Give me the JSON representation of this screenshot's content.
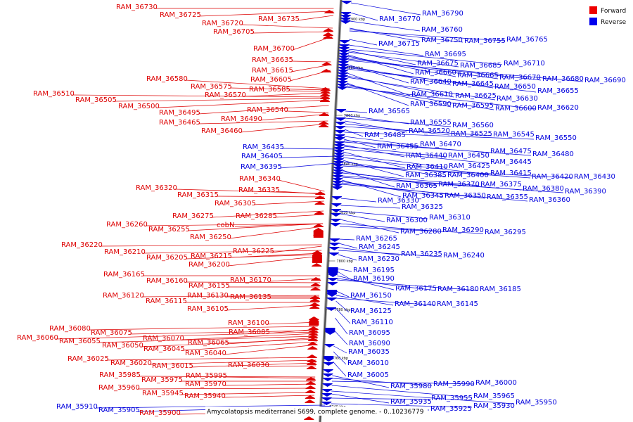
{
  "legend": {
    "items": [
      {
        "label": "Forward",
        "color": "#ee0000"
      },
      {
        "label": "Reverse",
        "color": "#0000ee"
      }
    ]
  },
  "caption": "Amycolatopsis mediterranei S699, complete genome. - 0..10236779",
  "ticks": [
    "7900 kbp",
    "7880 kbp",
    "7860 kbp",
    "7840 kbp",
    "7820 kbp",
    "7800 kbp",
    "7780 kbp",
    "7760 kbp",
    "7740 kbp"
  ],
  "forward_labels": [
    "RAM_36730",
    "RAM_36725",
    "RAM_36720",
    "RAM_36735",
    "RAM_36705",
    "RAM_36700",
    "RAM_36635",
    "RAM_36615",
    "RAM_36605",
    "RAM_36580",
    "RAM_36575",
    "RAM_36585",
    "RAM_36570",
    "RAM_36510",
    "RAM_36505",
    "RAM_36500",
    "RAM_36540",
    "RAM_36495",
    "RAM_36490",
    "RAM_36465",
    "RAM_36460",
    "RAM_36340",
    "RAM_36320",
    "RAM_36335",
    "RAM_36315",
    "RAM_36305",
    "RAM_36275",
    "RAM_36285",
    "RAM_36260",
    "cobN",
    "RAM_36255",
    "RAM_36250",
    "RAM_36220",
    "RAM_36225",
    "RAM_36210",
    "RAM_36215",
    "RAM_36205",
    "RAM_36200",
    "RAM_36165",
    "RAM_36170",
    "RAM_36160",
    "RAM_36155",
    "RAM_36120",
    "RAM_36130",
    "RAM_36135",
    "RAM_36115",
    "RAM_36105",
    "RAM_36100",
    "RAM_36080",
    "RAM_36085",
    "RAM_36075",
    "RAM_36060",
    "RAM_36070",
    "RAM_36055",
    "RAM_36065",
    "RAM_36050",
    "RAM_36045",
    "RAM_36040",
    "RAM_36025",
    "RAM_36020",
    "RAM_36015",
    "RAM_36030",
    "RAM_35985",
    "RAM_35995",
    "RAM_35975",
    "RAM_35970",
    "RAM_35960",
    "RAM_35945",
    "RAM_35940",
    "RAM_35900"
  ],
  "reverse_labels": [
    "RAM_36790",
    "RAM_36770",
    "RAM_36760",
    "RAM_36750",
    "RAM_36755",
    "RAM_36765",
    "RAM_36715",
    "RAM_36695",
    "RAM_36710",
    "RAM_36675",
    "RAM_36685",
    "RAM_36660",
    "RAM_36665",
    "RAM_36670",
    "RAM_36680",
    "RAM_36690",
    "RAM_36640",
    "RAM_36645",
    "RAM_36650",
    "RAM_36655",
    "RAM_36610",
    "RAM_36625",
    "RAM_36630",
    "RAM_36590",
    "RAM_36595",
    "RAM_36600",
    "RAM_36620",
    "RAM_36565",
    "RAM_36555",
    "RAM_36560",
    "RAM_36520",
    "RAM_36525",
    "RAM_36545",
    "RAM_36485",
    "RAM_36550",
    "RAM_36470",
    "RAM_36455",
    "RAM_36475",
    "RAM_36480",
    "RAM_36440",
    "RAM_36450",
    "RAM_36445",
    "RAM_36410",
    "RAM_36425",
    "RAM_36415",
    "RAM_36385",
    "RAM_36400",
    "RAM_36420",
    "RAM_36430",
    "RAM_36365",
    "RAM_36370",
    "RAM_36375",
    "RAM_36380",
    "RAM_36390",
    "RAM_36345",
    "RAM_36350",
    "RAM_36355",
    "RAM_36360",
    "RAM_36330",
    "RAM_36325",
    "RAM_36310",
    "RAM_36300",
    "RAM_36280",
    "RAM_36290",
    "RAM_36295",
    "RAM_36265",
    "RAM_36245",
    "RAM_36235",
    "RAM_36240",
    "RAM_36230",
    "RAM_36195",
    "RAM_36190",
    "RAM_36175",
    "RAM_36180",
    "RAM_36185",
    "RAM_36150",
    "RAM_36140",
    "RAM_36145",
    "RAM_36125",
    "RAM_36110",
    "RAM_36095",
    "RAM_36090",
    "RAM_36035",
    "RAM_36010",
    "RAM_36005",
    "RAM_35980",
    "RAM_35990",
    "RAM_36000",
    "RAM_35965",
    "RAM_35950",
    "RAM_35935",
    "RAM_35955",
    "RAM_35930",
    "RAM_35925"
  ],
  "left_reverse_labels": [
    "RAM_36435",
    "RAM_36405",
    "RAM_36395",
    "RAM_35910",
    "RAM_35905"
  ]
}
